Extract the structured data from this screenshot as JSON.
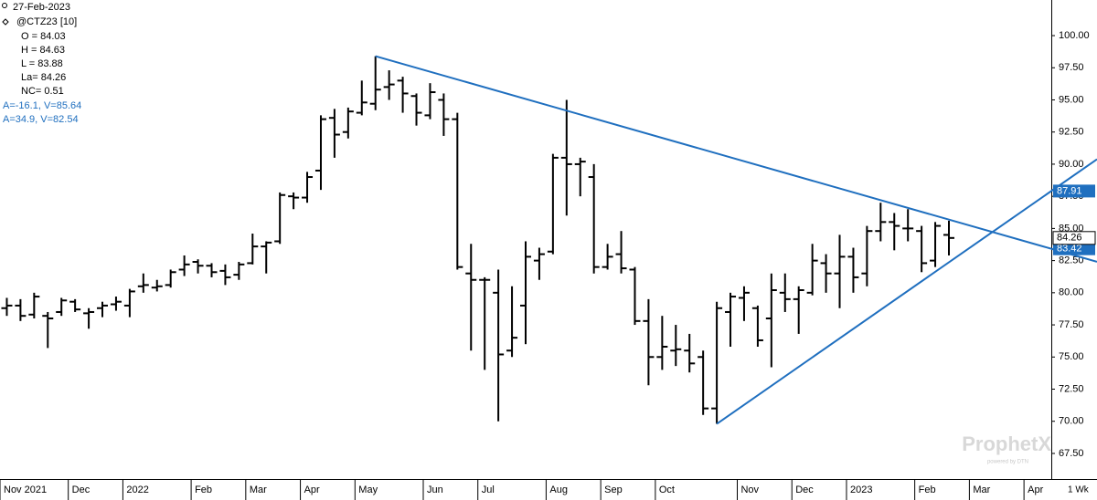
{
  "chart_data": {
    "type": "ohlc",
    "info": {
      "date": "27-Feb-2023",
      "symbol": "@CTZ23 [10]",
      "lines": [
        "O = 84.03",
        "H = 84.63",
        "L = 83.88",
        "La= 84.26",
        "NC= 0.51"
      ],
      "studies": [
        "A=-16.1, V=85.64",
        "A=34.9, V=82.54"
      ]
    },
    "watermark": "ProphetX",
    "watermark_sub": "powered by DTN",
    "period": "1 Wk",
    "categories": [
      "Nov 2021",
      null,
      null,
      null,
      null,
      "Dec",
      null,
      null,
      null,
      "2022",
      null,
      null,
      null,
      null,
      "Feb",
      null,
      null,
      null,
      "Mar",
      null,
      null,
      null,
      "Apr",
      null,
      null,
      null,
      "May",
      null,
      null,
      null,
      null,
      "Jun",
      null,
      null,
      null,
      "Jul",
      null,
      null,
      null,
      null,
      "Aug",
      null,
      null,
      null,
      "Sep",
      null,
      null,
      null,
      "Oct",
      null,
      null,
      null,
      null,
      null,
      "Nov",
      null,
      null,
      null,
      "Dec",
      null,
      null,
      null,
      "2023",
      null,
      null,
      null,
      null,
      "Feb",
      null,
      null,
      null,
      "Mar",
      null,
      null,
      null,
      "Apr",
      null
    ],
    "open": [
      78.8,
      79.0,
      78.3,
      78.2,
      78.5,
      79.3,
      78.4,
      78.8,
      79.1,
      79.0,
      80.5,
      80.4,
      80.6,
      81.8,
      82.4,
      82.1,
      81.7,
      81.4,
      82.3,
      83.6,
      84.0,
      87.5,
      87.4,
      89.5,
      93.6,
      92.5,
      94.0,
      94.7,
      96.0,
      96.5,
      95.3,
      93.8,
      95.0,
      93.5,
      81.5,
      81.0,
      80.0,
      75.5,
      79.0,
      82.5,
      83.2,
      90.5,
      90.0,
      89.0,
      82.0,
      83.0,
      81.8,
      77.8,
      75.0,
      75.5,
      75.5,
      75.0,
      71.0,
      78.5,
      79.6,
      78.8,
      78.0,
      80.0,
      79.5,
      80.0,
      82.3,
      81.5,
      82.8,
      81.5,
      84.8,
      85.5,
      85.0,
      84.8,
      82.5,
      84.5,
      null,
      null,
      null,
      null,
      null,
      null,
      null
    ],
    "high": [
      79.6,
      79.5,
      80.0,
      78.5,
      79.6,
      79.5,
      78.8,
      79.3,
      79.7,
      80.3,
      81.5,
      81.0,
      81.8,
      82.9,
      82.6,
      82.3,
      82.2,
      82.4,
      84.6,
      84.0,
      87.8,
      87.8,
      89.4,
      93.8,
      94.3,
      94.4,
      96.5,
      98.4,
      97.3,
      96.8,
      95.5,
      96.3,
      95.5,
      94.0,
      83.8,
      81.2,
      81.8,
      80.5,
      84.0,
      83.5,
      90.8,
      95.0,
      90.5,
      90.0,
      83.8,
      84.8,
      82.0,
      79.5,
      78.2,
      77.5,
      76.8,
      75.5,
      79.3,
      80.0,
      80.5,
      79.0,
      81.5,
      81.5,
      80.5,
      83.8,
      83.0,
      84.5,
      83.5,
      85.2,
      87.0,
      86.2,
      86.5,
      85.2,
      85.5,
      85.6,
      null,
      null,
      null,
      null,
      null,
      null,
      null
    ],
    "low": [
      78.2,
      77.8,
      78.0,
      75.7,
      78.2,
      78.5,
      77.2,
      78.1,
      78.6,
      78.1,
      80.0,
      80.1,
      80.4,
      81.3,
      81.5,
      81.2,
      80.6,
      81.0,
      82.2,
      81.5,
      83.8,
      86.5,
      87.0,
      88.0,
      90.5,
      92.0,
      93.8,
      94.2,
      95.0,
      94.0,
      93.0,
      93.5,
      92.2,
      81.8,
      75.5,
      74.0,
      70.0,
      75.0,
      76.0,
      81.0,
      83.0,
      86.0,
      87.5,
      81.5,
      81.8,
      81.5,
      77.5,
      72.8,
      74.0,
      74.3,
      73.8,
      70.5,
      69.8,
      75.8,
      77.8,
      75.8,
      74.2,
      78.5,
      76.8,
      79.8,
      80.0,
      78.8,
      80.0,
      80.5,
      84.0,
      83.3,
      84.0,
      81.6,
      82.0,
      82.9,
      null,
      null,
      null,
      null,
      null,
      null,
      null
    ],
    "close": [
      79.0,
      78.2,
      79.7,
      78.0,
      79.4,
      78.7,
      78.5,
      79.0,
      79.3,
      80.1,
      80.6,
      80.5,
      81.6,
      82.2,
      82.1,
      81.6,
      81.2,
      82.2,
      83.6,
      83.9,
      87.6,
      87.4,
      89.0,
      93.5,
      92.3,
      94.1,
      94.8,
      95.8,
      96.2,
      95.5,
      94.0,
      95.6,
      93.5,
      82.0,
      81.0,
      81.0,
      75.2,
      76.5,
      82.8,
      83.0,
      90.5,
      90.0,
      90.2,
      82.0,
      82.8,
      81.9,
      77.8,
      75.0,
      75.8,
      75.6,
      74.5,
      71.0,
      78.8,
      79.7,
      80.0,
      76.3,
      80.2,
      79.5,
      80.2,
      82.5,
      81.5,
      82.8,
      81.2,
      84.8,
      85.5,
      85.2,
      85.0,
      82.3,
      85.2,
      84.26,
      null,
      null,
      null,
      null,
      null,
      null,
      null
    ],
    "color": "#000000",
    "trendlines": [
      {
        "start_bar": 27,
        "start": 98.4,
        "end": 83.42,
        "color": "#1f6fbf"
      },
      {
        "start_bar": 52,
        "start": 69.8,
        "end": 87.91,
        "color": "#1f6fbf"
      }
    ],
    "ylim": [
      65.51,
      102.77
    ],
    "yticks": [
      {
        "value": 67.5,
        "label": "67.50"
      },
      {
        "value": 70,
        "label": "70.00"
      },
      {
        "value": 72.5,
        "label": "72.50"
      },
      {
        "value": 75,
        "label": "75.00"
      },
      {
        "value": 77.5,
        "label": "77.50"
      },
      {
        "value": 80,
        "label": "80.00"
      },
      {
        "value": 82.5,
        "label": "82.50"
      },
      {
        "value": 85,
        "label": "85.00"
      },
      {
        "value": 87.5,
        "label": "87.50"
      },
      {
        "value": 90,
        "label": "90.00"
      },
      {
        "value": 92.5,
        "label": "92.50"
      },
      {
        "value": 95,
        "label": "95.00"
      },
      {
        "value": 97.5,
        "label": "97.50"
      },
      {
        "value": 100,
        "label": "100.00"
      }
    ],
    "grid": false
  }
}
